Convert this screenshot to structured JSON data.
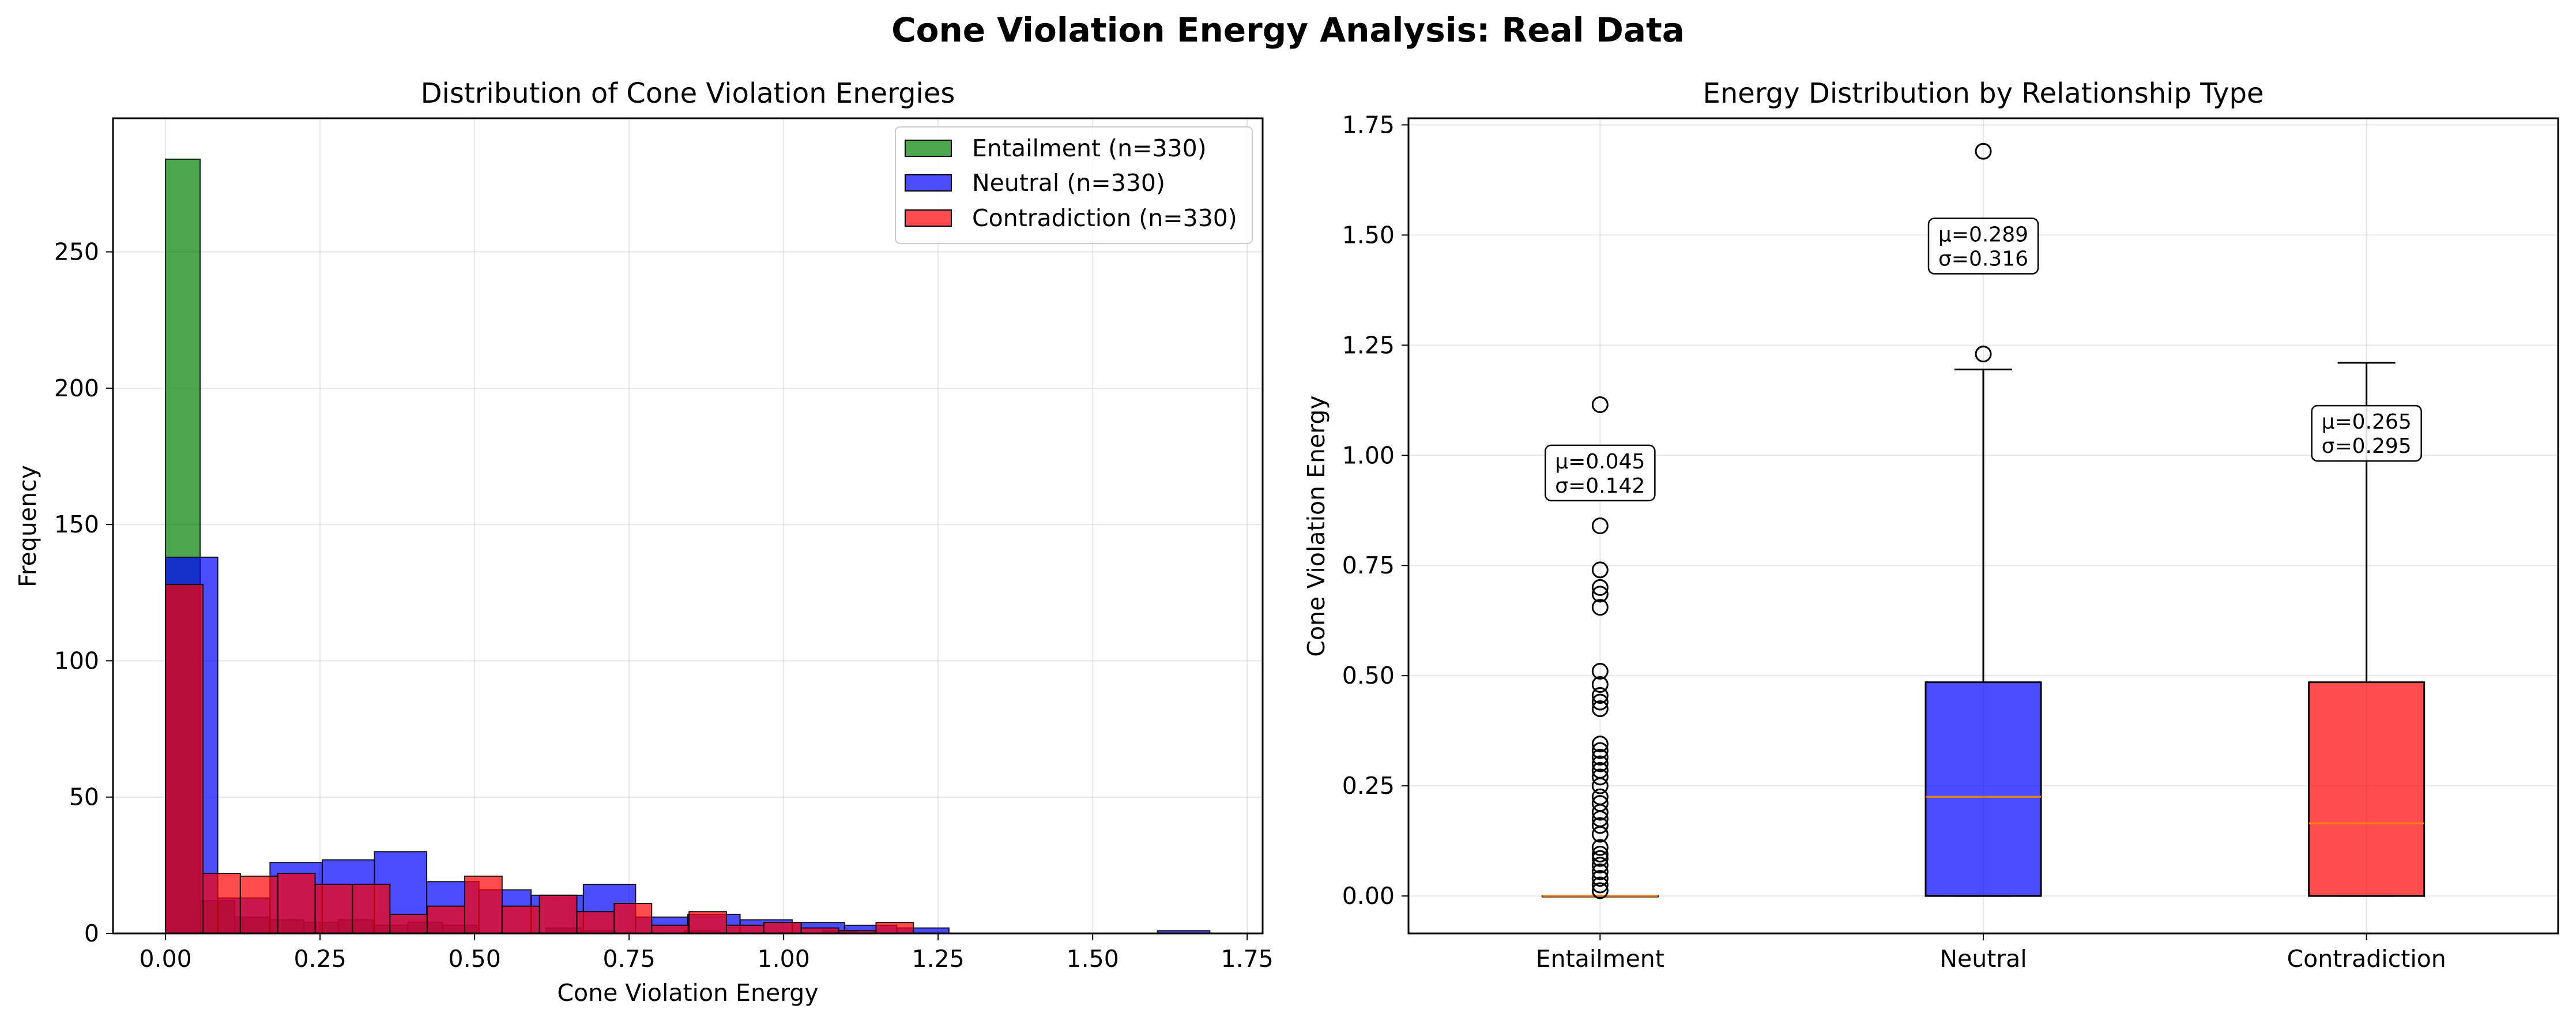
{
  "title": "Cone Violation Energy Analysis: Real Data",
  "colors": {
    "Entailment": "#008000",
    "Neutral": "#0000ff",
    "Contradiction": "#ff0000",
    "median": "#ff7f0e"
  },
  "chart_data": [
    {
      "type": "bar",
      "subtype": "histogram",
      "title": "Distribution of Cone Violation Energies",
      "xlabel": "Cone Violation Energy",
      "ylabel": "Frequency",
      "xlim": [
        -0.085,
        1.775
      ],
      "ylim": [
        0,
        299
      ],
      "xticks": [
        0.0,
        0.25,
        0.5,
        0.75,
        1.0,
        1.25,
        1.5,
        1.75
      ],
      "xtick_labels": [
        "0.00",
        "0.25",
        "0.50",
        "0.75",
        "1.00",
        "1.25",
        "1.50",
        "1.75"
      ],
      "yticks": [
        0,
        50,
        100,
        150,
        200,
        250
      ],
      "ytick_labels": [
        "0",
        "50",
        "100",
        "150",
        "200",
        "250"
      ],
      "grid": true,
      "legend_position": "top-right",
      "series": [
        {
          "name": "Entailment (n=330)",
          "key": "Entailment",
          "bins": [
            [
              0.0,
              0.056,
              284
            ],
            [
              0.056,
              0.112,
              12
            ],
            [
              0.112,
              0.168,
              6
            ],
            [
              0.168,
              0.224,
              5
            ],
            [
              0.224,
              0.28,
              4
            ],
            [
              0.28,
              0.336,
              5
            ],
            [
              0.336,
              0.392,
              3
            ],
            [
              0.392,
              0.448,
              4
            ],
            [
              0.448,
              0.504,
              3
            ],
            [
              0.616,
              0.672,
              2
            ],
            [
              0.672,
              0.728,
              1
            ],
            [
              0.728,
              0.784,
              0
            ],
            [
              0.84,
              0.896,
              1
            ],
            [
              1.064,
              1.12,
              1
            ]
          ]
        },
        {
          "name": "Neutral (n=330)",
          "key": "Neutral",
          "bins": [
            [
              0.0,
              0.0845,
              138
            ],
            [
              0.0845,
              0.169,
              13
            ],
            [
              0.169,
              0.2535,
              26
            ],
            [
              0.2535,
              0.338,
              27
            ],
            [
              0.338,
              0.4225,
              30
            ],
            [
              0.4225,
              0.507,
              19
            ],
            [
              0.507,
              0.5915,
              16
            ],
            [
              0.5915,
              0.676,
              14
            ],
            [
              0.676,
              0.7605,
              18
            ],
            [
              0.7605,
              0.845,
              6
            ],
            [
              0.845,
              0.9295,
              7
            ],
            [
              0.9295,
              1.014,
              5
            ],
            [
              1.014,
              1.0985,
              4
            ],
            [
              1.0985,
              1.183,
              3
            ],
            [
              1.183,
              1.2675,
              2
            ],
            [
              1.605,
              1.6895,
              1
            ]
          ]
        },
        {
          "name": "Contradiction (n=330)",
          "key": "Contradiction",
          "bins": [
            [
              0.0,
              0.0605,
              128
            ],
            [
              0.0605,
              0.121,
              22
            ],
            [
              0.121,
              0.1815,
              21
            ],
            [
              0.1815,
              0.242,
              22
            ],
            [
              0.242,
              0.3025,
              18
            ],
            [
              0.3025,
              0.363,
              18
            ],
            [
              0.363,
              0.4235,
              7
            ],
            [
              0.4235,
              0.484,
              10
            ],
            [
              0.484,
              0.5445,
              21
            ],
            [
              0.5445,
              0.605,
              10
            ],
            [
              0.605,
              0.6655,
              14
            ],
            [
              0.6655,
              0.726,
              8
            ],
            [
              0.726,
              0.7865,
              11
            ],
            [
              0.7865,
              0.847,
              3
            ],
            [
              0.847,
              0.9075,
              8
            ],
            [
              0.9075,
              0.968,
              3
            ],
            [
              0.968,
              1.0285,
              4
            ],
            [
              1.0285,
              1.089,
              2
            ],
            [
              1.089,
              1.1495,
              1
            ],
            [
              1.1495,
              1.21,
              4
            ]
          ]
        }
      ]
    },
    {
      "type": "box",
      "title": "Energy Distribution by Relationship Type",
      "xlabel": "",
      "ylabel": "Cone Violation Energy",
      "ylim": [
        -0.085,
        1.765
      ],
      "yticks": [
        0.0,
        0.25,
        0.5,
        0.75,
        1.0,
        1.25,
        1.5,
        1.75
      ],
      "ytick_labels": [
        "0.00",
        "0.25",
        "0.50",
        "0.75",
        "1.00",
        "1.25",
        "1.50",
        "1.75"
      ],
      "grid": true,
      "categories": [
        "Entailment",
        "Neutral",
        "Contradiction"
      ],
      "boxes": [
        {
          "category": "Entailment",
          "q1": 0.0,
          "median": 0.0,
          "q3": 0.0,
          "whisker_low": 0.0,
          "whisker_high": 0.0,
          "outliers": [
            1.115,
            0.84,
            0.74,
            0.7,
            0.685,
            0.655,
            0.51,
            0.48,
            0.455,
            0.44,
            0.425,
            0.345,
            0.33,
            0.315,
            0.3,
            0.285,
            0.27,
            0.25,
            0.225,
            0.21,
            0.19,
            0.175,
            0.16,
            0.14,
            0.11,
            0.095,
            0.085,
            0.07,
            0.055,
            0.04,
            0.025,
            0.012
          ],
          "mean_label": "μ=0.045",
          "std_label": "σ=0.142",
          "annotation_y": 0.96
        },
        {
          "category": "Neutral",
          "q1": 0.0,
          "median": 0.225,
          "q3": 0.485,
          "whisker_low": 0.0,
          "whisker_high": 1.195,
          "outliers": [
            1.23,
            1.69
          ],
          "mean_label": "μ=0.289",
          "std_label": "σ=0.316",
          "annotation_y": 1.475
        },
        {
          "category": "Contradiction",
          "q1": 0.0,
          "median": 0.165,
          "q3": 0.485,
          "whisker_low": 0.0,
          "whisker_high": 1.21,
          "outliers": [],
          "mean_label": "μ=0.265",
          "std_label": "σ=0.295",
          "annotation_y": 1.05
        }
      ]
    }
  ]
}
